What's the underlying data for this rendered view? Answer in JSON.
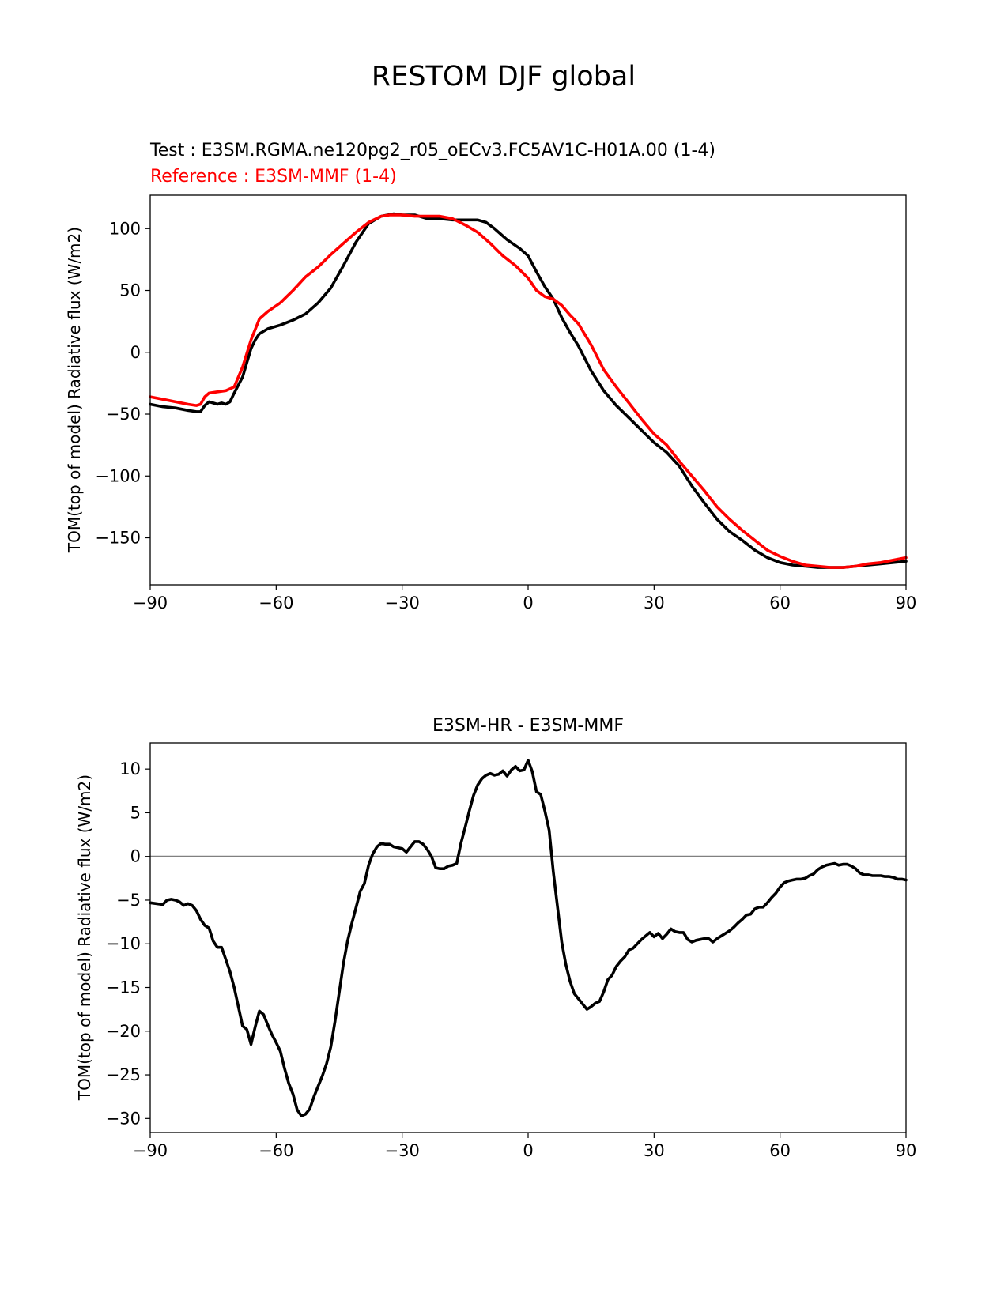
{
  "figure": {
    "title": "RESTOM DJF global"
  },
  "chart_data": [
    {
      "type": "line",
      "title_test": "Test : E3SM.RGMA.ne120pg2_r05_oECv3.FC5AV1C-H01A.00 (1-4)",
      "title_reference": "Reference : E3SM-MMF (1-4)",
      "xlabel": "",
      "ylabel": "TOM(top of model) Radiative flux (W/m2)",
      "xlim": [
        -90,
        90
      ],
      "ylim": [
        -188,
        127
      ],
      "xticks": [
        -90,
        -60,
        -30,
        0,
        30,
        60,
        90
      ],
      "xtick_labels": [
        "−90",
        "−60",
        "−30",
        "0",
        "30",
        "60",
        "90"
      ],
      "yticks": [
        100,
        50,
        0,
        -50,
        -100,
        -150
      ],
      "ytick_labels": [
        "100",
        "50",
        "0",
        "−50",
        "−100",
        "−150"
      ],
      "series": [
        {
          "name": "Test",
          "color": "#000000",
          "x": [
            -90,
            -87,
            -84,
            -81,
            -79,
            -78,
            -77,
            -76,
            -75,
            -74,
            -73,
            -72,
            -71,
            -70,
            -68,
            -66,
            -65,
            -64,
            -62,
            -59,
            -56,
            -53,
            -50,
            -47,
            -44,
            -41,
            -38,
            -35,
            -32,
            -30,
            -27,
            -24,
            -21,
            -18,
            -15,
            -12,
            -10,
            -8,
            -5,
            -2,
            0,
            2,
            4,
            6,
            8,
            10,
            12,
            15,
            18,
            21,
            24,
            27,
            30,
            33,
            36,
            39,
            42,
            45,
            48,
            51,
            54,
            57,
            60,
            63,
            66,
            69,
            72,
            75,
            78,
            81,
            84,
            87,
            90
          ],
          "values": [
            -42,
            -44,
            -45,
            -47,
            -48,
            -48,
            -43,
            -40,
            -41,
            -42,
            -41,
            -42,
            -40,
            -33,
            -20,
            3,
            10,
            15,
            19,
            22,
            26,
            31,
            40,
            52,
            70,
            89,
            104,
            110,
            112,
            111,
            111,
            108,
            108,
            107,
            107,
            107,
            105,
            100,
            91,
            84,
            78,
            65,
            53,
            43,
            28,
            16,
            5,
            -15,
            -31,
            -43,
            -53,
            -63,
            -73,
            -81,
            -92,
            -108,
            -122,
            -135,
            -145,
            -152,
            -160,
            -166,
            -170,
            -172,
            -173,
            -174,
            -174,
            -174,
            -173,
            -172,
            -171,
            -170,
            -169
          ]
        },
        {
          "name": "Reference",
          "color": "#ff0000",
          "x": [
            -90,
            -87,
            -84,
            -81,
            -79,
            -78,
            -77,
            -76,
            -74,
            -72,
            -70,
            -68,
            -66,
            -64,
            -62,
            -59,
            -56,
            -53,
            -50,
            -47,
            -44,
            -41,
            -38,
            -35,
            -33,
            -30,
            -27,
            -24,
            -21,
            -18,
            -15,
            -12,
            -9,
            -6,
            -3,
            0,
            2,
            4,
            6,
            8,
            10,
            12,
            15,
            18,
            21,
            24,
            27,
            30,
            33,
            36,
            39,
            42,
            45,
            48,
            51,
            54,
            57,
            60,
            63,
            66,
            69,
            72,
            75,
            78,
            81,
            84,
            87,
            90
          ],
          "values": [
            -36,
            -38,
            -40,
            -42,
            -43,
            -42,
            -36,
            -33,
            -32,
            -31,
            -28,
            -12,
            10,
            27,
            33,
            40,
            50,
            61,
            69,
            79,
            88,
            97,
            105,
            110,
            111,
            111,
            110,
            110,
            110,
            108,
            103,
            97,
            88,
            78,
            70,
            60,
            50,
            45,
            43,
            38,
            30,
            23,
            6,
            -14,
            -28,
            -41,
            -54,
            -66,
            -75,
            -88,
            -100,
            -112,
            -125,
            -135,
            -144,
            -152,
            -160,
            -165,
            -169,
            -172,
            -173,
            -174,
            -174,
            -173,
            -171,
            -170,
            -168,
            -166
          ]
        }
      ]
    },
    {
      "type": "line",
      "title": "E3SM-HR - E3SM-MMF",
      "xlabel": "",
      "ylabel": "TOM(top of model) Radiative flux (W/m2)",
      "xlim": [
        -90,
        90
      ],
      "ylim": [
        -31.6,
        13
      ],
      "xticks": [
        -90,
        -60,
        -30,
        0,
        30,
        60,
        90
      ],
      "xtick_labels": [
        "−90",
        "−60",
        "−30",
        "0",
        "30",
        "60",
        "90"
      ],
      "yticks": [
        10,
        5,
        0,
        -5,
        -10,
        -15,
        -20,
        -25,
        -30
      ],
      "ytick_labels": [
        "10",
        "5",
        "0",
        "−5",
        "−10",
        "−15",
        "−20",
        "−25",
        "−30"
      ],
      "zero_line_color": "#808080",
      "series": [
        {
          "name": "E3SM-HR - E3SM-MMF",
          "color": "#000000",
          "x": [
            -90,
            -87,
            -86,
            -85,
            -84,
            -83,
            -82,
            -81,
            -80,
            -79,
            -78,
            -77,
            -76,
            -75,
            -74,
            -73,
            -72,
            -71,
            -70,
            -68,
            -67,
            -66,
            -65,
            -64,
            -63,
            -62,
            -61,
            -60,
            -59,
            -58,
            -57,
            -56,
            -55,
            -54,
            -53,
            -52,
            -51,
            -50,
            -49,
            -48,
            -47,
            -46,
            -45,
            -44,
            -43,
            -42,
            -41,
            -40,
            -39,
            -38,
            -37,
            -36,
            -35,
            -34,
            -33,
            -32,
            -31,
            -30,
            -29,
            -28,
            -27,
            -26,
            -25,
            -24,
            -23,
            -22,
            -21,
            -20,
            -19,
            -18,
            -17,
            -16,
            -15,
            -14,
            -13,
            -12,
            -11,
            -10,
            -9,
            -8,
            -7,
            -6,
            -5,
            -4,
            -3,
            -2,
            -1,
            0,
            1,
            2,
            3,
            4,
            5,
            6,
            7,
            8,
            9,
            10,
            11,
            12,
            13,
            14,
            15,
            16,
            17,
            18,
            19,
            20,
            21,
            22,
            23,
            24,
            25,
            26,
            27,
            28,
            29,
            30,
            31,
            32,
            33,
            34,
            35,
            36,
            37,
            38,
            39,
            40,
            41,
            42,
            43,
            44,
            45,
            46,
            47,
            48,
            49,
            50,
            51,
            52,
            53,
            54,
            55,
            56,
            57,
            58,
            59,
            60,
            61,
            62,
            63,
            64,
            65,
            66,
            67,
            68,
            69,
            70,
            71,
            72,
            73,
            74,
            75,
            76,
            77,
            78,
            79,
            80,
            81,
            82,
            83,
            84,
            85,
            86,
            87,
            88,
            89,
            90
          ],
          "values": [
            -5.3,
            -5.5,
            -5.0,
            -4.9,
            -5.0,
            -5.2,
            -5.6,
            -5.4,
            -5.6,
            -6.2,
            -7.2,
            -7.9,
            -8.2,
            -9.7,
            -10.4,
            -10.4,
            -11.8,
            -13.2,
            -15.0,
            -19.4,
            -19.8,
            -21.5,
            -19.5,
            -17.7,
            -18.1,
            -19.3,
            -20.4,
            -21.3,
            -22.3,
            -24.3,
            -26.0,
            -27.2,
            -29.0,
            -29.7,
            -29.5,
            -28.9,
            -27.5,
            -26.3,
            -25.1,
            -23.7,
            -21.8,
            -18.9,
            -15.6,
            -12.3,
            -9.7,
            -7.7,
            -5.9,
            -4.0,
            -3.1,
            -1.0,
            0.3,
            1.1,
            1.5,
            1.4,
            1.4,
            1.1,
            1.0,
            0.9,
            0.5,
            1.1,
            1.7,
            1.7,
            1.4,
            0.8,
            0.0,
            -1.3,
            -1.4,
            -1.4,
            -1.1,
            -1.0,
            -0.8,
            1.5,
            3.3,
            5.2,
            7.0,
            8.2,
            8.9,
            9.3,
            9.5,
            9.3,
            9.4,
            9.8,
            9.2,
            9.9,
            10.3,
            9.8,
            9.9,
            11.0,
            9.7,
            7.4,
            7.1,
            5.2,
            3.0,
            -1.8,
            -5.8,
            -9.8,
            -12.4,
            -14.3,
            -15.7,
            -16.3,
            -16.9,
            -17.5,
            -17.2,
            -16.8,
            -16.6,
            -15.5,
            -14.1,
            -13.6,
            -12.6,
            -12.0,
            -11.5,
            -10.7,
            -10.5,
            -10.0,
            -9.5,
            -9.1,
            -8.7,
            -9.2,
            -8.8,
            -9.4,
            -8.9,
            -8.3,
            -8.6,
            -8.7,
            -8.7,
            -9.5,
            -9.8,
            -9.6,
            -9.5,
            -9.4,
            -9.4,
            -9.8,
            -9.4,
            -9.1,
            -8.8,
            -8.5,
            -8.1,
            -7.6,
            -7.2,
            -6.7,
            -6.6,
            -6.0,
            -5.8,
            -5.8,
            -5.3,
            -4.7,
            -4.2,
            -3.5,
            -3.0,
            -2.8,
            -2.7,
            -2.6,
            -2.6,
            -2.5,
            -2.2,
            -2.0,
            -1.5,
            -1.2,
            -1.0,
            -0.9,
            -0.8,
            -1.0,
            -0.9,
            -0.9,
            -1.1,
            -1.4,
            -1.9,
            -2.1,
            -2.1,
            -2.2,
            -2.2,
            -2.2,
            -2.3,
            -2.3,
            -2.4,
            -2.6,
            -2.6,
            -2.7
          ]
        }
      ]
    }
  ]
}
